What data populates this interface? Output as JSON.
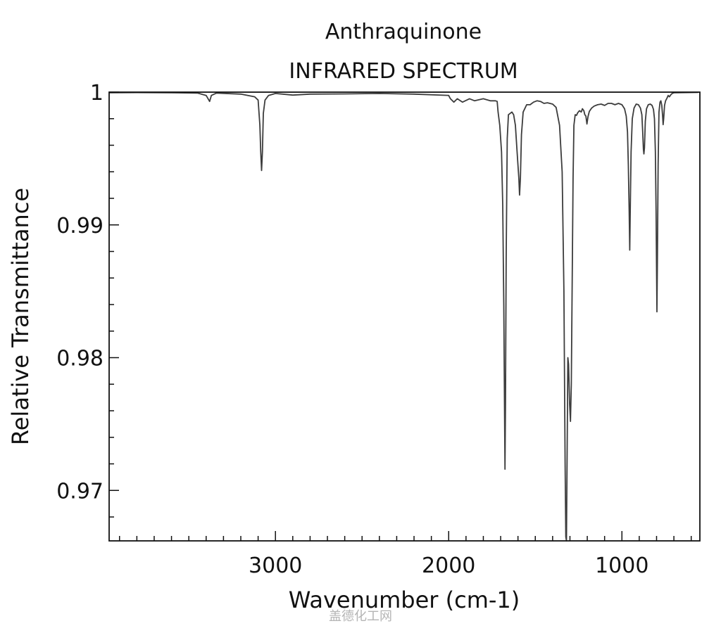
{
  "chart_data": {
    "type": "line",
    "title": "Anthraquinone",
    "subtitle": "INFRARED SPECTRUM",
    "xlabel": "Wavenumber (cm-1)",
    "ylabel": "Relative Transmittance",
    "xlim": [
      3960,
      550
    ],
    "ylim": [
      0.9662,
      1.0
    ],
    "x_reversed": true,
    "grid": false,
    "x_ticks": [
      3000,
      2000,
      1000
    ],
    "x_tick_labels": [
      "3000",
      "2000",
      "1000"
    ],
    "x_minor_step": 100,
    "y_ticks": [
      1.0,
      0.99,
      0.98,
      0.97
    ],
    "y_tick_labels": [
      "1",
      "0.99",
      "0.98",
      "0.97"
    ],
    "y_minor_step": 0.002,
    "line_color": "#3c3c3c",
    "series": [
      {
        "values": [
          [
            3960,
            0.99995
          ],
          [
            3800,
            0.99997
          ],
          [
            3600,
            0.99995
          ],
          [
            3450,
            0.99993
          ],
          [
            3400,
            0.99975
          ],
          [
            3380,
            0.9993
          ],
          [
            3370,
            0.99975
          ],
          [
            3340,
            0.99993
          ],
          [
            3200,
            0.99985
          ],
          [
            3120,
            0.99965
          ],
          [
            3100,
            0.9994
          ],
          [
            3090,
            0.9975
          ],
          [
            3085,
            0.9955
          ],
          [
            3080,
            0.9941
          ],
          [
            3075,
            0.9955
          ],
          [
            3070,
            0.9984
          ],
          [
            3060,
            0.9994
          ],
          [
            3040,
            0.99975
          ],
          [
            3000,
            0.9999
          ],
          [
            2900,
            0.99978
          ],
          [
            2800,
            0.99985
          ],
          [
            2600,
            0.99987
          ],
          [
            2400,
            0.9999
          ],
          [
            2200,
            0.99985
          ],
          [
            2000,
            0.99975
          ],
          [
            1990,
            0.9995
          ],
          [
            1970,
            0.99925
          ],
          [
            1950,
            0.9995
          ],
          [
            1920,
            0.99925
          ],
          [
            1880,
            0.9995
          ],
          [
            1850,
            0.99935
          ],
          [
            1800,
            0.9995
          ],
          [
            1760,
            0.99935
          ],
          [
            1730,
            0.99935
          ],
          [
            1720,
            0.9993
          ],
          [
            1715,
            0.9985
          ],
          [
            1705,
            0.9975
          ],
          [
            1695,
            0.9955
          ],
          [
            1688,
            0.9915
          ],
          [
            1682,
            0.984
          ],
          [
            1678,
            0.9765
          ],
          [
            1675,
            0.9716
          ],
          [
            1672,
            0.9765
          ],
          [
            1668,
            0.9875
          ],
          [
            1662,
            0.9965
          ],
          [
            1655,
            0.9983
          ],
          [
            1645,
            0.9984
          ],
          [
            1635,
            0.9985
          ],
          [
            1625,
            0.9983
          ],
          [
            1615,
            0.9975
          ],
          [
            1605,
            0.9955
          ],
          [
            1595,
            0.9935
          ],
          [
            1591,
            0.99225
          ],
          [
            1586,
            0.9935
          ],
          [
            1580,
            0.9968
          ],
          [
            1570,
            0.9985
          ],
          [
            1550,
            0.99905
          ],
          [
            1530,
            0.99905
          ],
          [
            1510,
            0.99925
          ],
          [
            1490,
            0.99935
          ],
          [
            1470,
            0.9993
          ],
          [
            1450,
            0.99915
          ],
          [
            1430,
            0.9992
          ],
          [
            1400,
            0.9991
          ],
          [
            1380,
            0.99885
          ],
          [
            1360,
            0.9975
          ],
          [
            1345,
            0.994
          ],
          [
            1335,
            0.985
          ],
          [
            1328,
            0.972
          ],
          [
            1324,
            0.9665
          ],
          [
            1320,
            0.9662
          ],
          [
            1316,
            0.973
          ],
          [
            1312,
            0.98
          ],
          [
            1308,
            0.9795
          ],
          [
            1302,
            0.9765
          ],
          [
            1297,
            0.9752
          ],
          [
            1292,
            0.978
          ],
          [
            1287,
            0.986
          ],
          [
            1282,
            0.9935
          ],
          [
            1277,
            0.9975
          ],
          [
            1270,
            0.9983
          ],
          [
            1262,
            0.99825
          ],
          [
            1255,
            0.99845
          ],
          [
            1245,
            0.9986
          ],
          [
            1235,
            0.9985
          ],
          [
            1228,
            0.99875
          ],
          [
            1220,
            0.9986
          ],
          [
            1214,
            0.9983
          ],
          [
            1208,
            0.9982
          ],
          [
            1202,
            0.9976
          ],
          [
            1196,
            0.99815
          ],
          [
            1188,
            0.99855
          ],
          [
            1175,
            0.9988
          ],
          [
            1160,
            0.99895
          ],
          [
            1140,
            0.99905
          ],
          [
            1120,
            0.9991
          ],
          [
            1100,
            0.999
          ],
          [
            1080,
            0.99915
          ],
          [
            1060,
            0.99915
          ],
          [
            1040,
            0.99905
          ],
          [
            1020,
            0.99915
          ],
          [
            1000,
            0.99905
          ],
          [
            985,
            0.99875
          ],
          [
            975,
            0.9982
          ],
          [
            968,
            0.997
          ],
          [
            963,
            0.9945
          ],
          [
            958,
            0.991
          ],
          [
            955,
            0.9881
          ],
          [
            952,
            0.991
          ],
          [
            947,
            0.9955
          ],
          [
            940,
            0.998
          ],
          [
            930,
            0.9988
          ],
          [
            918,
            0.9991
          ],
          [
            905,
            0.99905
          ],
          [
            893,
            0.9988
          ],
          [
            885,
            0.9983
          ],
          [
            880,
            0.997
          ],
          [
            876,
            0.9957
          ],
          [
            873,
            0.99535
          ],
          [
            870,
            0.9958
          ],
          [
            865,
            0.9978
          ],
          [
            858,
            0.99875
          ],
          [
            848,
            0.99905
          ],
          [
            836,
            0.9991
          ],
          [
            826,
            0.999
          ],
          [
            818,
            0.9987
          ],
          [
            812,
            0.998
          ],
          [
            807,
            0.9955
          ],
          [
            803,
            0.991
          ],
          [
            800,
            0.9865
          ],
          [
            798,
            0.98345
          ],
          [
            795,
            0.9875
          ],
          [
            791,
            0.9945
          ],
          [
            786,
            0.9985
          ],
          [
            780,
            0.99925
          ],
          [
            775,
            0.99935
          ],
          [
            770,
            0.999
          ],
          [
            765,
            0.9982
          ],
          [
            762,
            0.99755
          ],
          [
            759,
            0.998
          ],
          [
            754,
            0.999
          ],
          [
            748,
            0.99935
          ],
          [
            740,
            0.99955
          ],
          [
            733,
            0.99975
          ],
          [
            726,
            0.99965
          ],
          [
            718,
            0.9998
          ],
          [
            710,
            0.9999
          ],
          [
            700,
            0.99995
          ],
          [
            560,
            0.99998
          ]
        ]
      }
    ]
  },
  "watermark": "盖德化工网"
}
